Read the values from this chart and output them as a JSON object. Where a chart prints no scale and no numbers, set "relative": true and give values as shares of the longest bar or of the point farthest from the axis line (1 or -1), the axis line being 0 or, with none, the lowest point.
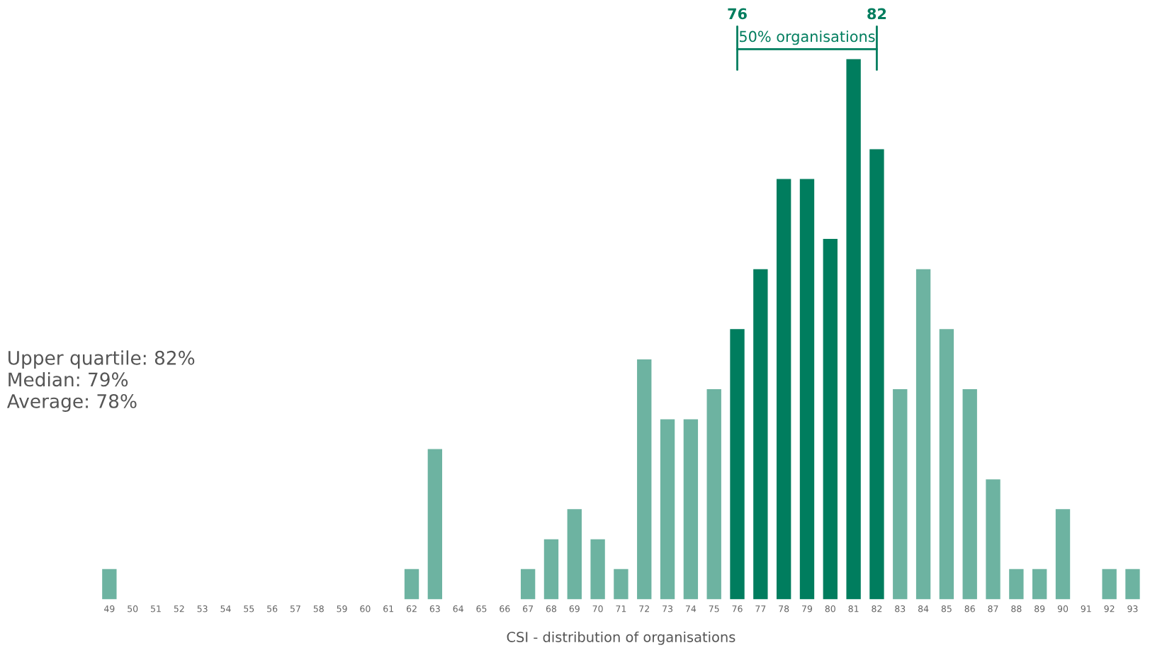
{
  "chart_data": {
    "type": "bar",
    "relative": true,
    "xlabel": "CSI - distribution of organisations",
    "categories": [
      "49",
      "50",
      "51",
      "52",
      "53",
      "54",
      "55",
      "56",
      "57",
      "58",
      "59",
      "60",
      "61",
      "62",
      "63",
      "64",
      "65",
      "66",
      "67",
      "68",
      "69",
      "70",
      "71",
      "72",
      "73",
      "74",
      "75",
      "76",
      "77",
      "78",
      "79",
      "80",
      "81",
      "82",
      "83",
      "84",
      "85",
      "86",
      "87",
      "88",
      "89",
      "90",
      "91",
      "92",
      "93"
    ],
    "values": [
      0.056,
      0,
      0,
      0,
      0,
      0,
      0,
      0,
      0,
      0,
      0,
      0,
      0,
      0.056,
      0.278,
      0,
      0,
      0,
      0.056,
      0.111,
      0.167,
      0.111,
      0.056,
      0.444,
      0.333,
      0.333,
      0.389,
      0.5,
      0.611,
      0.778,
      0.778,
      0.667,
      1,
      0.833,
      0.389,
      0.611,
      0.5,
      0.389,
      0.222,
      0.056,
      0.056,
      0.167,
      0,
      0.056,
      0.056
    ],
    "colors": [
      "#6db3a1",
      "#6db3a1",
      "#6db3a1",
      "#6db3a1",
      "#6db3a1",
      "#6db3a1",
      "#6db3a1",
      "#6db3a1",
      "#6db3a1",
      "#6db3a1",
      "#6db3a1",
      "#6db3a1",
      "#6db3a1",
      "#6db3a1",
      "#6db3a1",
      "#6db3a1",
      "#6db3a1",
      "#6db3a1",
      "#6db3a1",
      "#6db3a1",
      "#6db3a1",
      "#6db3a1",
      "#6db3a1",
      "#6db3a1",
      "#6db3a1",
      "#6db3a1",
      "#6db3a1",
      "#007d5e",
      "#007d5e",
      "#007d5e",
      "#007d5e",
      "#007d5e",
      "#007d5e",
      "#007d5e",
      "#6db3a1",
      "#6db3a1",
      "#6db3a1",
      "#6db3a1",
      "#6db3a1",
      "#6db3a1",
      "#6db3a1",
      "#6db3a1",
      "#6db3a1",
      "#6db3a1",
      "#6db3a1"
    ],
    "annotations": [
      {
        "text": "76",
        "x": "76"
      },
      {
        "text": "82",
        "x": "82"
      },
      "50% organisations",
      "Upper quartile: 82%",
      "Median: 79%",
      "Average: 78%"
    ]
  }
}
